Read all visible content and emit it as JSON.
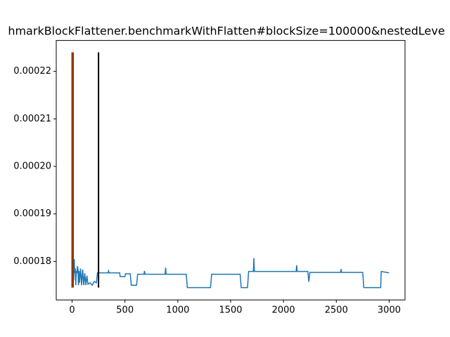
{
  "chart_data": {
    "type": "line",
    "title": "hmarkBlockFlattener.benchmarkWithFlatten#blockSize=100000&nestedLeve",
    "x": [
      0,
      5,
      10,
      15,
      20,
      25,
      30,
      35,
      40,
      45,
      50,
      55,
      60,
      65,
      70,
      80,
      90,
      100,
      110,
      120,
      130,
      140,
      150,
      170,
      190,
      210,
      230,
      240,
      340,
      345,
      350,
      450,
      455,
      500,
      505,
      550,
      560,
      610,
      620,
      680,
      685,
      690,
      880,
      885,
      890,
      1080,
      1090,
      1310,
      1320,
      1590,
      1600,
      1660,
      1670,
      1715,
      1720,
      1725,
      2120,
      2125,
      2130,
      2230,
      2240,
      2250,
      2540,
      2545,
      2550,
      2750,
      2760,
      2920,
      2925,
      3000
    ],
    "series": [
      {
        "color": "#1f77b4",
        "values": [
          0.00018,
          0.0001765,
          0.0001785,
          0.000176,
          0.0001805,
          0.0001775,
          0.0001785,
          0.000175,
          0.000178,
          0.0001775,
          0.000179,
          0.0001785,
          0.000175,
          0.000178,
          0.0001755,
          0.0001785,
          0.000175,
          0.0001783,
          0.000175,
          0.0001775,
          0.000175,
          0.000177,
          0.0001752,
          0.0001755,
          0.000175,
          0.0001758,
          0.0001755,
          0.0001776,
          0.0001776,
          0.000178,
          0.0001776,
          0.0001776,
          0.0001768,
          0.0001768,
          0.0001774,
          0.0001774,
          0.000175,
          0.000175,
          0.0001773,
          0.0001773,
          0.000178,
          0.0001773,
          0.0001773,
          0.0001787,
          0.0001773,
          0.0001773,
          0.0001745,
          0.0001745,
          0.0001773,
          0.0001773,
          0.0001745,
          0.0001745,
          0.0001779,
          0.0001779,
          0.0001807,
          0.0001779,
          0.0001779,
          0.0001792,
          0.0001779,
          0.0001779,
          0.0001757,
          0.0001777,
          0.0001777,
          0.0001784,
          0.0001777,
          0.0001777,
          0.0001745,
          0.0001745,
          0.0001779,
          0.0001776
        ]
      }
    ],
    "vlines": {
      "x": [
        0,
        10,
        250
      ],
      "colors": [
        "green",
        "red",
        "black"
      ],
      "ymin": 0.0001745,
      "ymax": 0.000224
    },
    "xlim": [
      -150,
      3150
    ],
    "ylim": [
      0.0001719,
      0.0002265
    ],
    "xticks": [
      0,
      500,
      1000,
      1500,
      2000,
      2500,
      3000
    ],
    "yticks": [
      0.00018,
      0.00019,
      {
        "value": 0.0002,
        "label": "0.00020"
      },
      0.00021,
      0.00022
    ]
  }
}
